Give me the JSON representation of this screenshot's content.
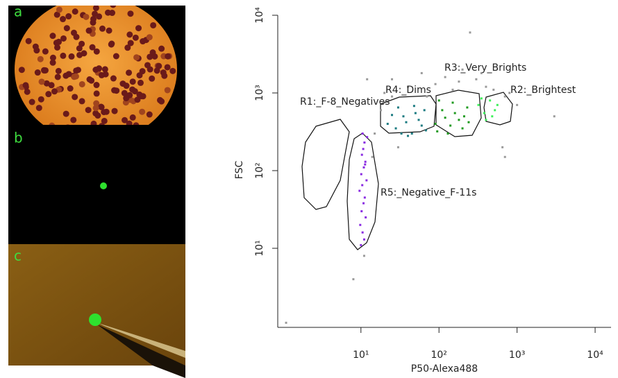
{
  "panels": [
    {
      "label": "a"
    },
    {
      "label": "b"
    },
    {
      "label": "c"
    }
  ],
  "chart_data": {
    "type": "scatter",
    "log_x": true,
    "log_y": true,
    "x_label": "P50-Alexa488",
    "y_label": "FSC",
    "xlim": [
      0.86,
      16000
    ],
    "ylim": [
      0.96,
      10000
    ],
    "xticks": [
      {
        "value": 10,
        "label": "10¹"
      },
      {
        "value": 100,
        "label": "10²"
      },
      {
        "value": 1000,
        "label": "10³"
      },
      {
        "value": 10000,
        "label": "10⁴"
      }
    ],
    "yticks": [
      {
        "value": 10,
        "label": "10¹"
      },
      {
        "value": 100,
        "label": "10²"
      },
      {
        "value": 1000,
        "label": "10³"
      },
      {
        "value": 10000,
        "label": "10⁴"
      }
    ],
    "gates": [
      "R1:_F-8_Negatives",
      "R2:_Brightest",
      "R3:_Very_Brights",
      "R4:_Dims",
      "R5:_Negative_F-11s"
    ],
    "series": [
      {
        "color": "#9a9a9a",
        "x": [
          15,
          18,
          20,
          25,
          40,
          70,
          90,
          150,
          250,
          200,
          300,
          700,
          800,
          3000,
          700,
          650,
          30,
          14,
          60,
          120,
          12,
          500,
          1000,
          400,
          25,
          8,
          1.1,
          11,
          350,
          180
        ],
        "values": [
          300,
          600,
          1000,
          1500,
          1200,
          900,
          1300,
          1100,
          6000,
          2000,
          1500,
          900,
          1000,
          500,
          150,
          200,
          200,
          150,
          1800,
          1600,
          1500,
          1100,
          700,
          1200,
          900,
          4,
          1.1,
          8,
          1800,
          1400
        ]
      },
      {
        "color": "#8a2be2",
        "x": [
          10,
          11,
          10.5,
          9.8,
          11.5,
          10.2,
          10.8,
          11.2,
          9.6,
          10.4,
          11.8,
          10.1,
          10.9,
          11.4,
          10.3,
          10.7,
          11.1,
          12,
          10.5,
          11.3
        ],
        "values": [
          11,
          13,
          16,
          20,
          25,
          30,
          38,
          45,
          55,
          65,
          75,
          90,
          110,
          130,
          160,
          190,
          230,
          270,
          300,
          120
        ]
      },
      {
        "color": "#1a7a80",
        "x": [
          22,
          28,
          35,
          45,
          55,
          65,
          30,
          40,
          50,
          60,
          25,
          38,
          48,
          68,
          33
        ],
        "values": [
          400,
          350,
          500,
          300,
          450,
          600,
          650,
          280,
          550,
          380,
          520,
          420,
          680,
          330,
          300
        ]
      },
      {
        "color": "#1e9a1e",
        "x": [
          90,
          110,
          130,
          150,
          180,
          200,
          230,
          100,
          160,
          120,
          210,
          140,
          95,
          240
        ],
        "values": [
          400,
          600,
          300,
          750,
          450,
          350,
          650,
          800,
          550,
          480,
          500,
          380,
          320,
          420
        ]
      },
      {
        "color": "#3ef05a",
        "x": [
          320,
          380,
          450,
          520,
          400,
          350,
          560,
          480
        ],
        "values": [
          700,
          550,
          800,
          600,
          450,
          850,
          700,
          500
        ]
      }
    ]
  }
}
